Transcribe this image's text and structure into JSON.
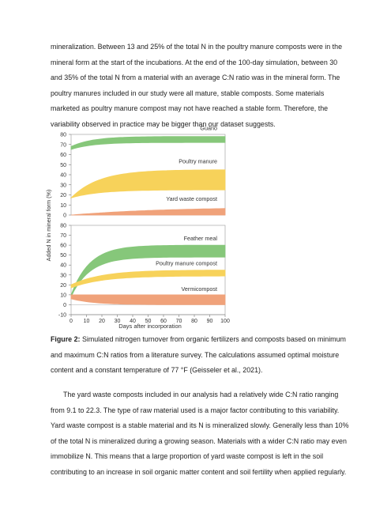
{
  "paragraph_1": "mineralization. Between 13 and 25% of the total N in the poultry manure composts were in the mineral form at the start of the incubations. At the end of the 100-day simulation, between 30 and 35% of the total N from a material with an average C:N ratio was in the mineral form. The poultry manures included in our study were all mature, stable composts. Some materials marketed as poultry manure compost may not have reached a stable form. Therefore, the variability observed in practice may be bigger than our dataset suggests.",
  "caption": {
    "label": "Figure 2:",
    "text": " Simulated nitrogen turnover from organic fertilizers and composts based on minimum and maximum C:N ratios from a literature survey. The calculations assumed optimal moisture content and a constant temperature of 77 °F (Geisseler et al., 2021)."
  },
  "paragraph_2": "The yard waste composts included in our analysis had a relatively wide C:N ratio ranging from 9.1 to 22.3. The type of raw material used is a major factor contributing to this variability. Yard waste compost is a stable material and its N is mineralized slowly. Generally less than 10% of the total N is mineralized during a growing season. Materials with a wider C:N ratio may even immobilize N. This means that a large proportion of yard waste compost is left in the soil contributing to an increase in soil organic matter content and soil fertility when applied regularly.",
  "chart_data": {
    "type": "area",
    "ylabel": "Added N in mineral form (%)",
    "xlabel": "Days after incorporation",
    "x_ticks": [
      0,
      10,
      20,
      30,
      40,
      50,
      60,
      70,
      80,
      90,
      100
    ],
    "xlim": [
      0,
      100
    ],
    "panels": [
      {
        "id": "top",
        "ylim": [
          0,
          80
        ],
        "y_ticks": [
          0,
          10,
          20,
          30,
          40,
          50,
          60,
          70,
          80
        ],
        "series": [
          {
            "name": "Guano",
            "color": "#86c77a",
            "start": [
              65,
              68
            ],
            "end": [
              72,
              78
            ],
            "k": 14
          },
          {
            "name": "Poultry manure",
            "color": "#f7d25a",
            "start": [
              17,
              17
            ],
            "end": [
              25,
              45
            ],
            "k": 18
          },
          {
            "name": "Yard waste compost",
            "color": "#f0a27a",
            "start": [
              0,
              0
            ],
            "end": [
              0,
              8
            ],
            "k": 60
          }
        ]
      },
      {
        "id": "bottom",
        "ylim": [
          -10,
          80
        ],
        "y_ticks": [
          -10,
          0,
          10,
          20,
          30,
          40,
          50,
          60,
          70,
          80
        ],
        "series": [
          {
            "name": "Feather meal",
            "color": "#86c77a",
            "start": [
              8,
              10
            ],
            "end": [
              48,
              60
            ],
            "k": 12
          },
          {
            "name": "Poultry manure compost",
            "color": "#f7d25a",
            "start": [
              17,
              20
            ],
            "end": [
              29,
              35
            ],
            "k": 20
          },
          {
            "name": "Vermicompost",
            "color": "#f0a27a",
            "start": [
              6,
              10
            ],
            "end": [
              0,
              10
            ],
            "k": 15
          }
        ]
      }
    ]
  }
}
